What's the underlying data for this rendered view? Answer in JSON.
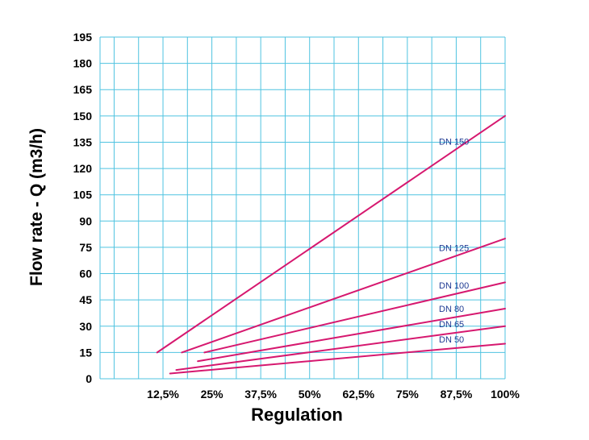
{
  "chart_data": {
    "type": "line",
    "title": "",
    "xlabel": "Regulation",
    "ylabel": "Flow rate - Q (m3/h)",
    "x_tick_labels": [
      "12,5%",
      "25%",
      "37,5%",
      "50%",
      "62,5%",
      "75%",
      "87,5%",
      "100%"
    ],
    "x_ticks": [
      12.5,
      25,
      37.5,
      50,
      62.5,
      75,
      87.5,
      100
    ],
    "xlim": [
      -3.6,
      100
    ],
    "y_ticks": [
      0,
      15,
      30,
      45,
      60,
      75,
      90,
      105,
      120,
      135,
      150,
      165,
      180,
      195
    ],
    "ylim": [
      0,
      195
    ],
    "grid": true,
    "series": [
      {
        "name": "DN 150",
        "x": [
          11.0,
          100
        ],
        "y": [
          15,
          150
        ]
      },
      {
        "name": "DN 125",
        "x": [
          17.3,
          100
        ],
        "y": [
          15,
          80
        ]
      },
      {
        "name": "DN 100",
        "x": [
          23.1,
          100
        ],
        "y": [
          15,
          55
        ]
      },
      {
        "name": "DN 80",
        "x": [
          21.4,
          100
        ],
        "y": [
          10,
          40
        ]
      },
      {
        "name": "DN 65",
        "x": [
          15.9,
          100
        ],
        "y": [
          5,
          30
        ]
      },
      {
        "name": "DN 50",
        "x": [
          14.3,
          100
        ],
        "y": [
          3,
          20
        ]
      }
    ],
    "colors": {
      "grid": "#4fc3e0",
      "line": "#d6186f",
      "series_label": "#1f3a93",
      "text": "#000000"
    }
  }
}
